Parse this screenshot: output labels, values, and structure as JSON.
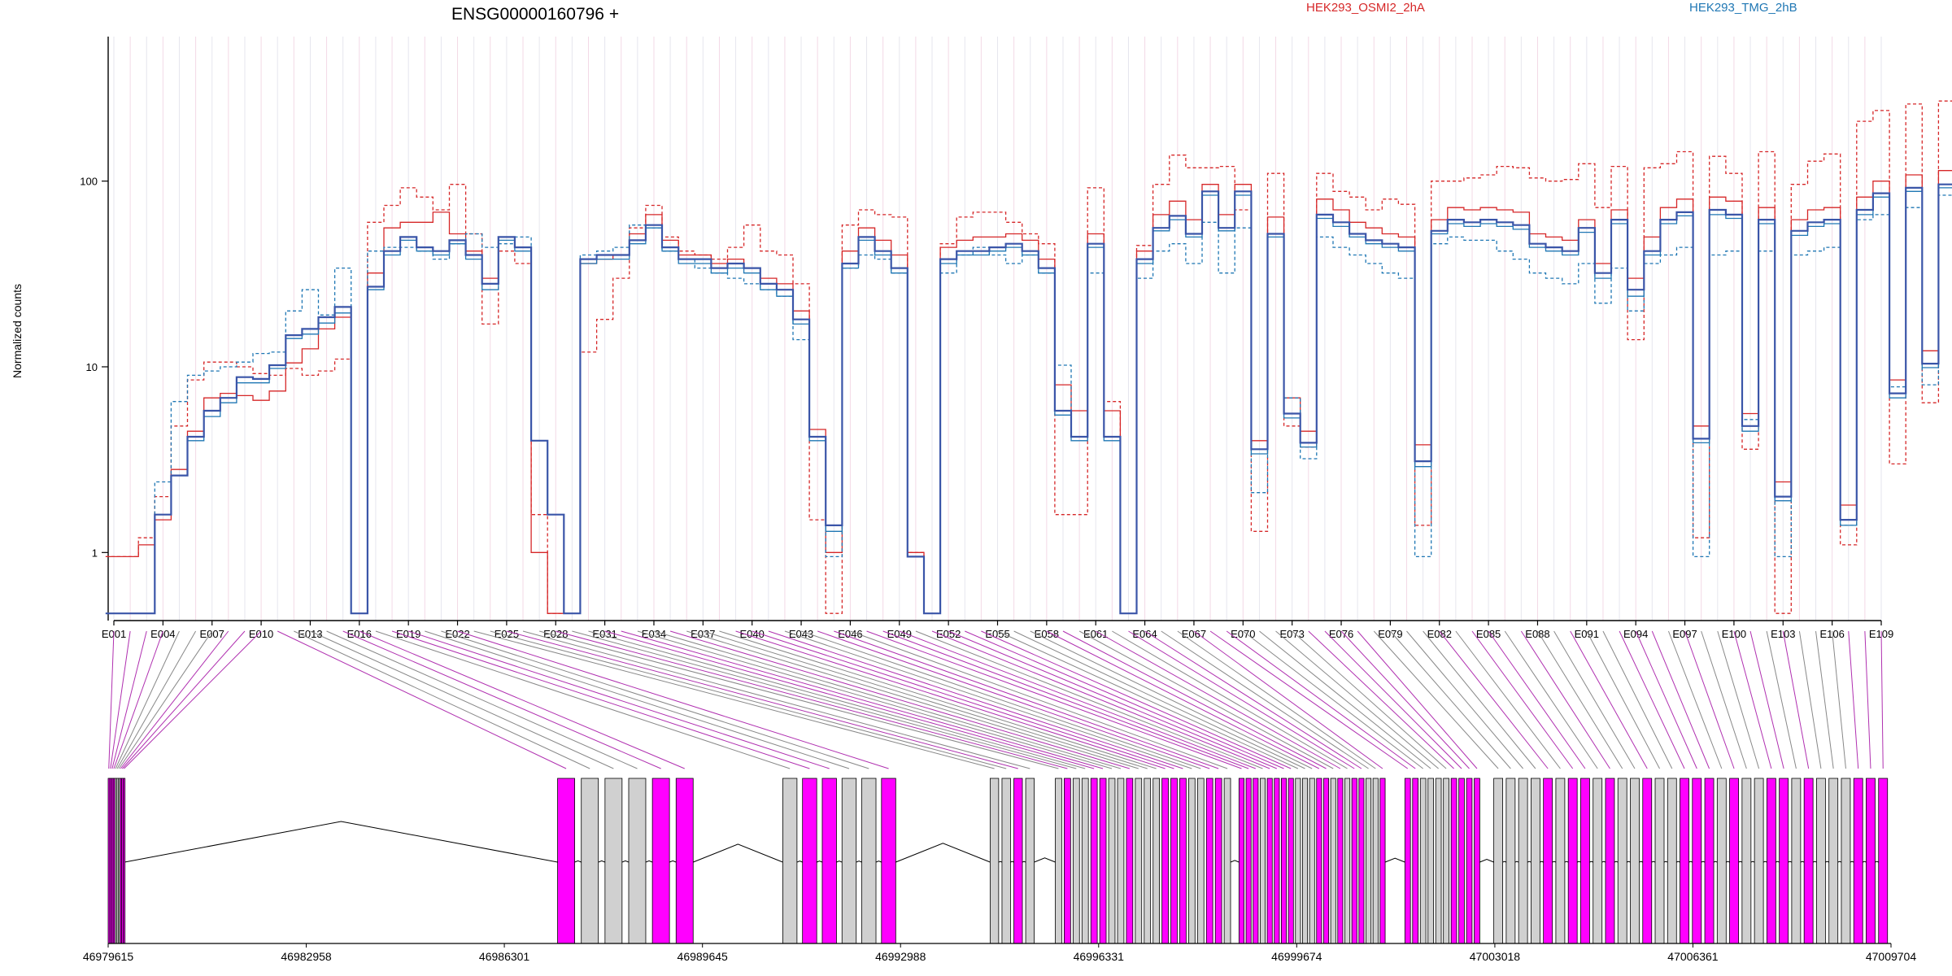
{
  "title": "ENSG00000160796 +",
  "legend": [
    {
      "label": "HEK293_OSMI2_2hA",
      "color": "#d62728"
    },
    {
      "label": "HEK293_TMG_2hB",
      "color": "#1f77b4"
    }
  ],
  "colors": {
    "red": "#d62728",
    "blue": "#1f77b4",
    "fitted": "#3a55a8",
    "exon_significant": "#ff00ff",
    "exon_normal": "#d0d0d0",
    "link_significant": "#b030b0",
    "link_normal": "#888888"
  },
  "chart_data": {
    "type": "line",
    "ylabel": "Normalized counts",
    "yscale": "log",
    "yticks": [
      1,
      10,
      100
    ],
    "ylim": [
      0.43,
      600
    ],
    "xlabel": "",
    "exon_labels_shown": [
      "E001",
      "E004",
      "E007",
      "E010",
      "E013",
      "E016",
      "E019",
      "E022",
      "E025",
      "E028",
      "E031",
      "E034",
      "E037",
      "E040",
      "E043",
      "E046",
      "E049",
      "E052",
      "E055",
      "E058",
      "E061",
      "E064",
      "E067",
      "E070",
      "E073",
      "E076",
      "E079",
      "E082",
      "E085",
      "E088",
      "E091",
      "E094",
      "E097",
      "E100",
      "E103",
      "E106",
      "E109"
    ],
    "n_exons": 109,
    "fitted_profile": [
      0.47,
      0.47,
      0.47,
      1.6,
      2.6,
      4.2,
      5.8,
      6.8,
      8.8,
      8.6,
      10.2,
      14.8,
      16.0,
      18.5,
      21.0,
      0.47,
      27,
      42,
      50,
      44,
      42,
      48,
      40,
      28,
      50,
      44,
      4.0,
      1.6,
      0.47,
      38,
      40,
      40,
      48,
      58,
      44,
      38,
      38,
      34,
      36,
      34,
      28,
      26,
      18,
      4.2,
      1.4,
      36,
      50,
      42,
      34,
      0.95,
      0.47,
      38,
      42,
      42,
      44,
      46,
      42,
      34,
      5.8,
      4.2,
      46,
      4.2,
      0.47,
      38,
      56,
      65,
      52,
      88,
      56,
      88,
      3.6,
      52,
      5.6,
      3.9,
      66,
      60,
      52,
      48,
      46,
      44,
      3.1,
      54,
      62,
      60,
      62,
      60,
      58,
      46,
      44,
      42,
      56,
      32,
      62,
      26,
      42,
      62,
      68,
      4.1,
      70,
      66,
      4.8,
      62,
      2.0,
      54,
      60,
      62,
      1.5,
      70,
      86,
      7.2,
      92,
      10.4,
      96,
      92,
      14.4,
      92,
      44,
      42,
      36,
      13.8,
      42,
      40,
      38,
      78,
      6.6,
      68,
      38,
      60,
      24,
      88,
      100,
      5.2,
      92,
      3.9,
      90,
      4.0,
      0.47,
      60
    ],
    "series": [
      {
        "name": "HEK293_OSMI2_2hA",
        "color": "#d62728",
        "lines": [
          {
            "style": "solid",
            "values": [
              0.95,
              0.95,
              1.1,
              1.5,
              2.8,
              4.5,
              6.8,
              7.2,
              7.0,
              6.6,
              7.4,
              10.5,
              12.5,
              16.0,
              18.5,
              0.47,
              32,
              56,
              60,
              60,
              68,
              52,
              42,
              30,
              50,
              44,
              1.0,
              0.47,
              0.47,
              36,
              38,
              40,
              52,
              66,
              48,
              40,
              40,
              36,
              38,
              34,
              30,
              28,
              20,
              4.6,
              1.0,
              42,
              56,
              48,
              40,
              1.0,
              0.47,
              44,
              48,
              50,
              50,
              52,
              48,
              38,
              8,
              5.8,
              52,
              5.8,
              0.47,
              42,
              66,
              78,
              62,
              96,
              66,
              96,
              4.0,
              64,
              6.8,
              4.5,
              80,
              70,
              60,
              56,
              52,
              50,
              3.8,
              62,
              72,
              70,
              72,
              70,
              68,
              52,
              50,
              48,
              62,
              36,
              70,
              30,
              50,
              72,
              80,
              4.8,
              82,
              78,
              5.6,
              72,
              2.4,
              62,
              70,
              72,
              1.8,
              82,
              100,
              8.5,
              108,
              12.2,
              114,
              108,
              17.0,
              108,
              50,
              48,
              42,
              16.2,
              50,
              46,
              44,
              92,
              7.8,
              80,
              44,
              70,
              28,
              102,
              118,
              6.1,
              108,
              4.6,
              106,
              4.7,
              0.55,
              70
            ]
          },
          {
            "style": "dashed",
            "values": [
              0.95,
              0.95,
              1.2,
              2.0,
              4.8,
              8.5,
              10.6,
              10.6,
              10.0,
              9.2,
              9.0,
              9.8,
              9.0,
              9.5,
              11.0,
              0.47,
              60,
              74,
              92,
              82,
              70,
              96,
              52,
              17,
              42,
              36,
              1.6,
              0.47,
              0.47,
              12,
              18,
              30,
              56,
              74,
              50,
              42,
              40,
              38,
              44,
              58,
              42,
              40,
              28,
              1.5,
              0.47,
              58,
              70,
              66,
              64,
              1.0,
              0.47,
              46,
              64,
              68,
              68,
              60,
              52,
              46,
              1.6,
              1.6,
              92,
              6.5,
              0.47,
              45,
              96,
              138,
              118,
              118,
              120,
              70,
              1.3,
              110,
              4.8,
              3.7,
              110,
              88,
              82,
              70,
              80,
              75,
              1.4,
              100,
              100,
              104,
              108,
              120,
              118,
              104,
              100,
              102,
              124,
              72,
              120,
              14,
              118,
              124,
              144,
              1.2,
              136,
              110,
              3.6,
              144,
              0.47,
              96,
              128,
              140,
              1.1,
              210,
              240,
              3.0,
              260,
              6.4,
              270,
              250,
              7.8,
              280,
              120,
              100,
              80,
              12.6,
              160,
              150,
              140,
              260,
              18,
              220,
              120,
              230,
              42,
              300,
              340,
              2.4,
              460,
              1.6,
              420,
              3.2,
              2.4,
              330
            ]
          }
        ]
      },
      {
        "name": "HEK293_TMG_2hB",
        "color": "#1f77b4",
        "lines": [
          {
            "style": "solid",
            "values": [
              0.47,
              0.47,
              0.47,
              1.6,
              2.6,
              4.0,
              5.4,
              6.4,
              8.2,
              8.2,
              9.8,
              14.2,
              15.0,
              17.2,
              19.5,
              0.47,
              26,
              40,
              48,
              42,
              40,
              46,
              38,
              26,
              48,
              42,
              4.0,
              1.6,
              0.47,
              36,
              38,
              38,
              46,
              56,
              42,
              36,
              36,
              32,
              34,
              32,
              26,
              24,
              17,
              4.0,
              1.3,
              34,
              48,
              40,
              32,
              0.95,
              0.47,
              36,
              40,
              40,
              42,
              44,
              40,
              32,
              5.5,
              4.0,
              44,
              4.0,
              0.47,
              36,
              54,
              62,
              50,
              84,
              54,
              84,
              3.4,
              50,
              5.3,
              3.7,
              63,
              57,
              50,
              46,
              44,
              42,
              2.9,
              52,
              59,
              57,
              59,
              57,
              55,
              44,
              42,
              40,
              53,
              30,
              59,
              24,
              40,
              59,
              65,
              3.9,
              66,
              63,
              4.5,
              59,
              1.9,
              51,
              57,
              59,
              1.4,
              66,
              82,
              6.8,
              88,
              9.9,
              92,
              88,
              13.7,
              88,
              42,
              40,
              34,
              13.1,
              40,
              38,
              36,
              74,
              6.3,
              65,
              36,
              57,
              23,
              84,
              95,
              5.0,
              88,
              3.7,
              86,
              3.8,
              0.47,
              57
            ]
          },
          {
            "style": "dashed",
            "values": [
              0.47,
              0.47,
              0.47,
              2.4,
              6.5,
              9.0,
              9.5,
              10.0,
              10.6,
              11.8,
              12.0,
              20.0,
              26.0,
              19.0,
              34.0,
              0.47,
              42,
              44,
              44,
              42,
              38,
              46,
              52,
              44,
              46,
              50,
              4.0,
              1.6,
              0.47,
              40,
              42,
              44,
              58,
              56,
              42,
              38,
              34,
              32,
              30,
              28,
              26,
              24,
              14,
              4.2,
              0.95,
              34,
              40,
              38,
              32,
              0.95,
              0.47,
              32,
              40,
              44,
              40,
              36,
              40,
              32,
              10.2,
              4.2,
              32,
              4.2,
              0.47,
              30,
              42,
              46,
              36,
              60,
              32,
              56,
              2.1,
              52,
              6.8,
              3.2,
              50,
              44,
              40,
              36,
              32,
              30,
              0.95,
              46,
              50,
              48,
              48,
              42,
              38,
              32,
              30,
              28,
              36,
              22,
              34,
              20,
              36,
              40,
              44,
              0.95,
              40,
              42,
              5.2,
              42,
              0.95,
              40,
              42,
              44,
              1.4,
              62,
              66,
              7.8,
              72,
              8.0,
              84,
              80,
              10.5,
              80,
              40,
              38,
              30,
              13.0,
              36,
              40,
              36,
              60,
              6.2,
              42,
              28,
              56,
              17,
              76,
              90,
              2.4,
              80,
              1.6,
              70,
              2.8,
              0.95,
              60
            ]
          }
        ]
      }
    ],
    "genomic_axis": {
      "labels": [
        "46979615",
        "46982958",
        "46986301",
        "46989645",
        "46992988",
        "46996331",
        "46999674",
        "47003018",
        "47006361",
        "47009704"
      ]
    },
    "exon_significance": "1111000111100011011001001001001100100011100110111011110001101011001110000111100001011010010011101001101000111"
  }
}
